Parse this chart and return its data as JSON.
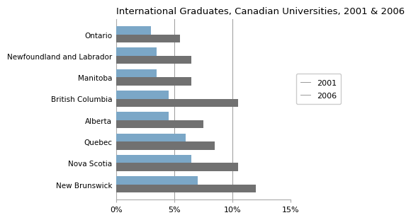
{
  "title": "International Graduates, Canadian Universities, 2001 & 2006",
  "provinces": [
    "New Brunswick",
    "Nova Scotia",
    "Quebec",
    "Alberta",
    "British Columbia",
    "Manitoba",
    "Newfoundland and Labrador",
    "Ontario"
  ],
  "values_2001": [
    7.0,
    6.5,
    6.0,
    4.5,
    4.5,
    3.5,
    3.5,
    3.0
  ],
  "values_2006": [
    12.0,
    10.5,
    8.5,
    7.5,
    10.5,
    6.5,
    6.5,
    5.5
  ],
  "color_2001": "#7BA7C7",
  "color_2006": "#717171",
  "xlim": [
    0,
    15
  ],
  "xticks": [
    0,
    5,
    10,
    15
  ],
  "xticklabels": [
    "0%",
    "5%",
    "10%",
    "15%"
  ],
  "legend_labels": [
    "2001",
    "2006"
  ],
  "bar_height": 0.38,
  "background_color": "#ffffff",
  "grid_color": "#888888"
}
